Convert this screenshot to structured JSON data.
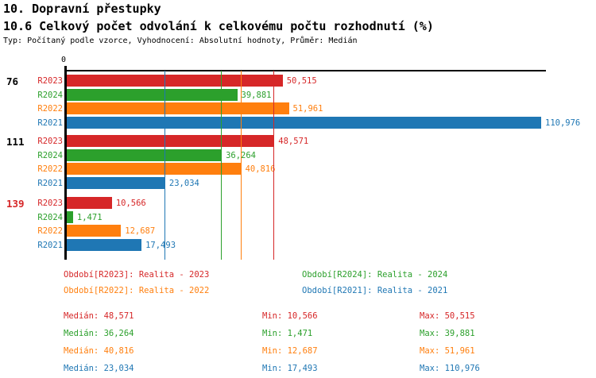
{
  "header": {
    "title": "10. Dopravní přestupky",
    "subtitle": "10.6 Celkový počet odvolání k celkovému počtu rozhodnutí (%)",
    "meta": "Typ: Počítaný podle vzorce, Vyhodnocení: Absolutní hodnoty, Průměr: Medián"
  },
  "chart_data": {
    "type": "bar",
    "orientation": "horizontal",
    "x_axis": {
      "origin_label": "0",
      "xlim": [
        0,
        112000
      ],
      "grid": "median lines per series"
    },
    "series_colors": {
      "R2023": "#d62728",
      "R2024": "#2ca02c",
      "R2022": "#ff7f0e",
      "R2021": "#1f77b4"
    },
    "series_order": [
      "R2023",
      "R2024",
      "R2022",
      "R2021"
    ],
    "groups": [
      {
        "label": "76",
        "label_color": "#000000",
        "bars": [
          {
            "series": "R2023",
            "value": 50515,
            "display": "50,515"
          },
          {
            "series": "R2024",
            "value": 39881,
            "display": "39,881"
          },
          {
            "series": "R2022",
            "value": 51961,
            "display": "51,961"
          },
          {
            "series": "R2021",
            "value": 110976,
            "display": "110,976"
          }
        ]
      },
      {
        "label": "111",
        "label_color": "#000000",
        "bars": [
          {
            "series": "R2023",
            "value": 48571,
            "display": "48,571"
          },
          {
            "series": "R2024",
            "value": 36264,
            "display": "36,264"
          },
          {
            "series": "R2022",
            "value": 40816,
            "display": "40,816"
          },
          {
            "series": "R2021",
            "value": 23034,
            "display": "23,034"
          }
        ]
      },
      {
        "label": "139",
        "label_color": "#d62728",
        "bars": [
          {
            "series": "R2023",
            "value": 10566,
            "display": "10,566"
          },
          {
            "series": "R2024",
            "value": 1471,
            "display": "1,471"
          },
          {
            "series": "R2022",
            "value": 12687,
            "display": "12,687"
          },
          {
            "series": "R2021",
            "value": 17493,
            "display": "17,493"
          }
        ]
      }
    ],
    "median_lines": [
      {
        "series": "R2023",
        "value": 48571
      },
      {
        "series": "R2024",
        "value": 36264
      },
      {
        "series": "R2022",
        "value": 40816
      },
      {
        "series": "R2021",
        "value": 23034
      }
    ]
  },
  "legend": {
    "items": [
      {
        "series": "R2023",
        "text": "Období[R2023]: Realita - 2023"
      },
      {
        "series": "R2024",
        "text": "Období[R2024]: Realita - 2024"
      },
      {
        "series": "R2022",
        "text": "Období[R2022]: Realita - 2022"
      },
      {
        "series": "R2021",
        "text": "Období[R2021]: Realita - 2021"
      }
    ]
  },
  "stats": {
    "rows": [
      {
        "series": "R2023",
        "median": "Medián: 48,571",
        "min": "Min: 10,566",
        "max": "Max: 50,515"
      },
      {
        "series": "R2024",
        "median": "Medián: 36,264",
        "min": "Min: 1,471",
        "max": "Max: 39,881"
      },
      {
        "series": "R2022",
        "median": "Medián: 40,816",
        "min": "Min: 12,687",
        "max": "Max: 51,961"
      },
      {
        "series": "R2021",
        "median": "Medián: 23,034",
        "min": "Min: 17,493",
        "max": "Max: 110,976"
      }
    ]
  }
}
